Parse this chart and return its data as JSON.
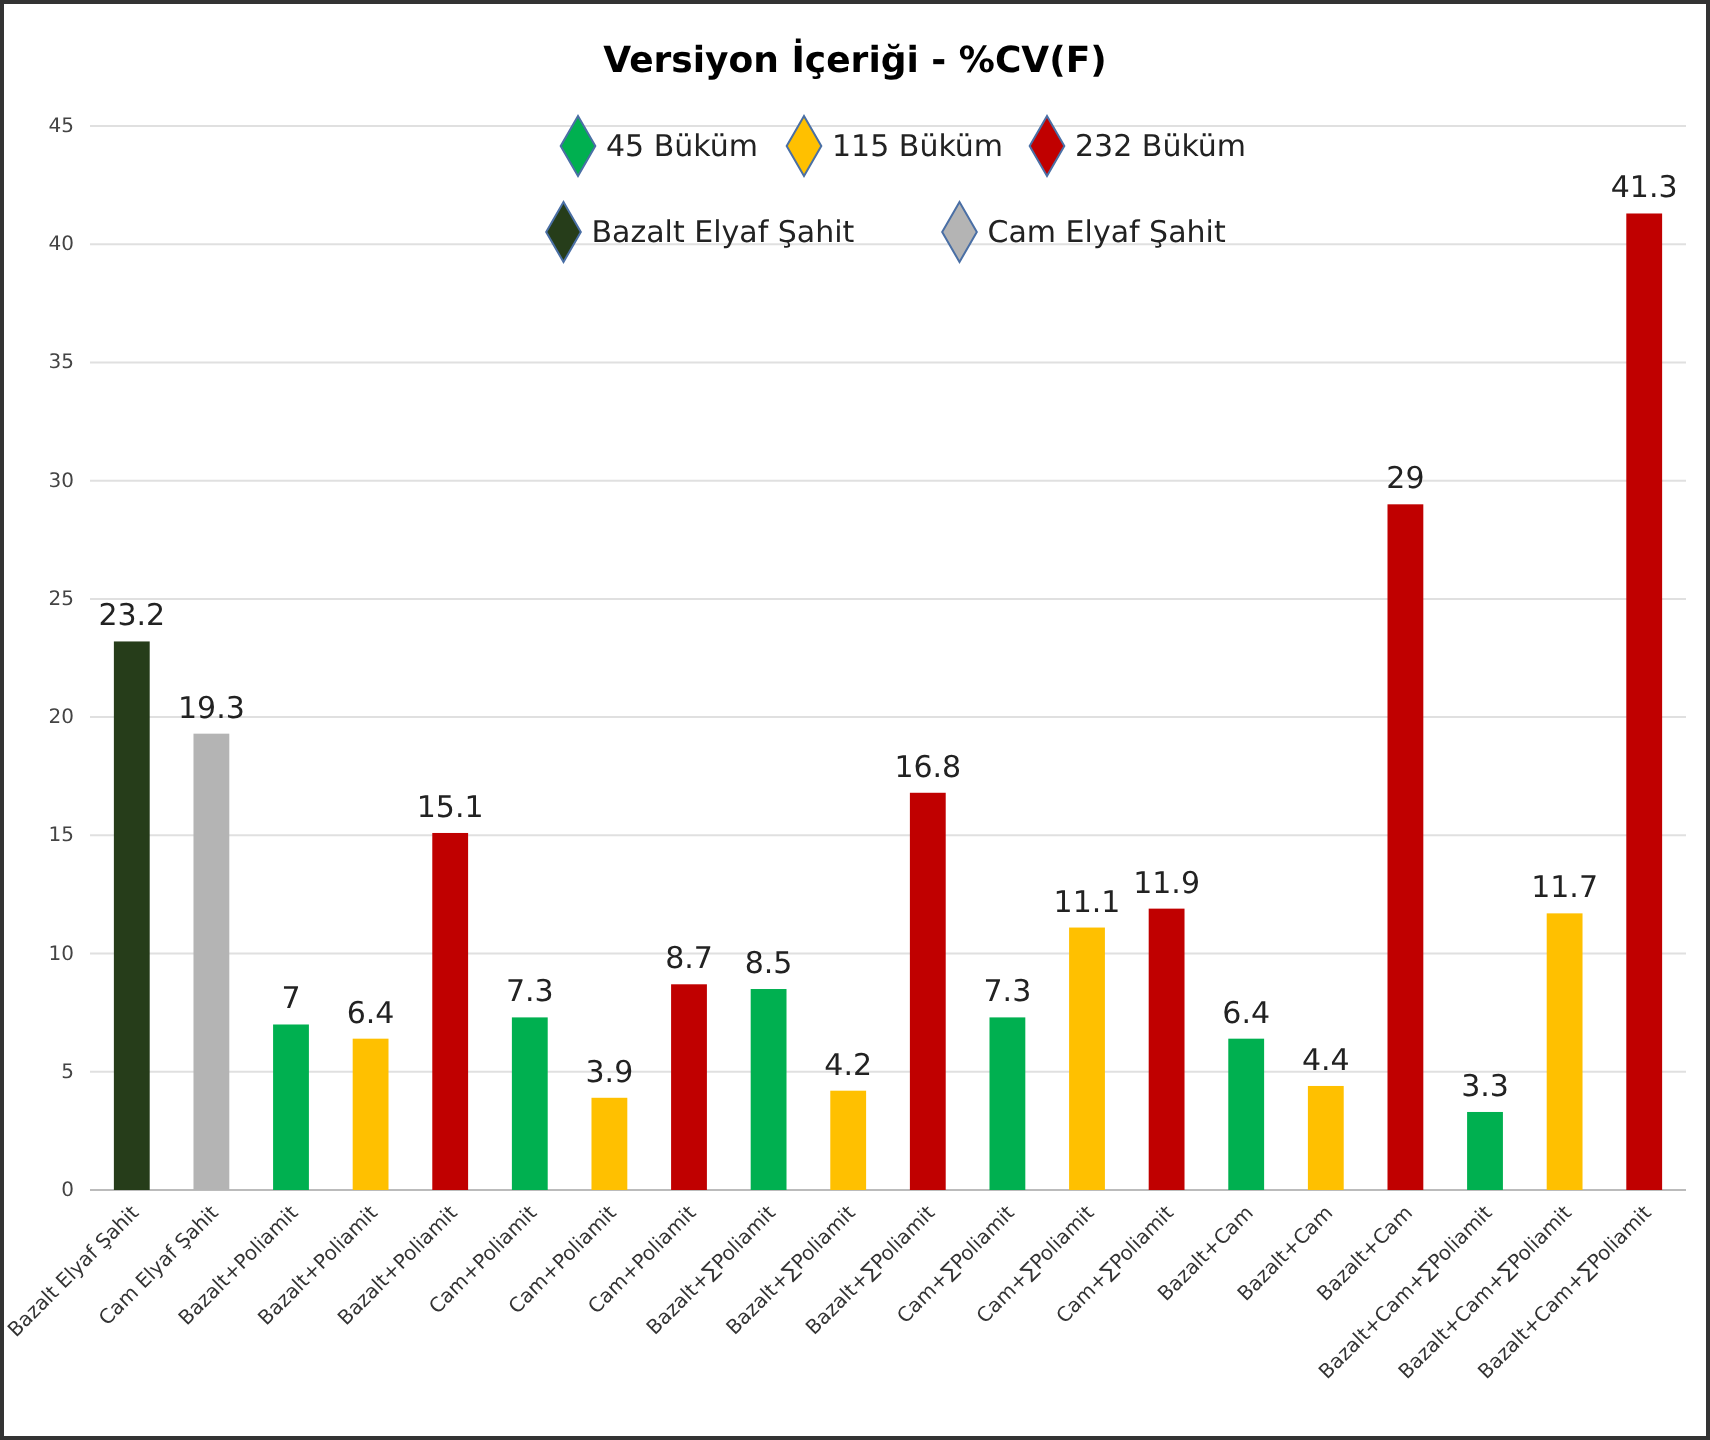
{
  "chart_data": {
    "type": "bar",
    "title": "Versiyon İçeriği - %CV(F)",
    "categories": [
      "Bazalt Elyaf Şahit",
      "Cam Elyaf Şahit",
      "Bazalt+Poliamit",
      "Bazalt+Poliamit",
      "Bazalt+Poliamit",
      "Cam+Poliamit",
      "Cam+Poliamit",
      "Cam+Poliamit",
      "Bazalt+∑Poliamit",
      "Bazalt+∑Poliamit",
      "Bazalt+∑Poliamit",
      "Cam+∑Poliamit",
      "Cam+∑Poliamit",
      "Cam+∑Poliamit",
      "Bazalt+Cam",
      "Bazalt+Cam",
      "Bazalt+Cam",
      "Bazalt+Cam+∑Poliamit",
      "Bazalt+Cam+∑Poliamit",
      "Bazalt+Cam+∑Poliamit"
    ],
    "series": [
      {
        "name": "45 Büküm",
        "color": "#00b050",
        "values": [
          null,
          null,
          7,
          null,
          null,
          7.3,
          null,
          null,
          8.5,
          null,
          null,
          7.3,
          null,
          null,
          6.4,
          null,
          null,
          3.3,
          null,
          null
        ]
      },
      {
        "name": "115 Büküm",
        "color": "#ffc000",
        "values": [
          null,
          null,
          null,
          6.4,
          null,
          null,
          3.9,
          null,
          null,
          4.2,
          null,
          null,
          11.1,
          null,
          null,
          4.4,
          null,
          null,
          11.7,
          null
        ]
      },
      {
        "name": "232 Büküm",
        "color": "#c00000",
        "values": [
          null,
          null,
          null,
          null,
          15.1,
          null,
          null,
          8.7,
          null,
          null,
          16.8,
          null,
          null,
          11.9,
          null,
          null,
          29,
          null,
          null,
          41.3
        ]
      },
      {
        "name": "Bazalt Elyaf Şahit",
        "color": "#263d1a",
        "values": [
          23.2,
          null,
          null,
          null,
          null,
          null,
          null,
          null,
          null,
          null,
          null,
          null,
          null,
          null,
          null,
          null,
          null,
          null,
          null,
          null
        ]
      },
      {
        "name": "Cam Elyaf Şahit",
        "color": "#b4b4b4",
        "values": [
          null,
          19.3,
          null,
          null,
          null,
          null,
          null,
          null,
          null,
          null,
          null,
          null,
          null,
          null,
          null,
          null,
          null,
          null,
          null,
          null
        ]
      }
    ],
    "ylim": [
      0,
      45
    ],
    "yticks": [
      0,
      5,
      10,
      15,
      20,
      25,
      30,
      35,
      40,
      45
    ],
    "grid": "y",
    "legend": "top",
    "marker": "diamond",
    "data_labels": true
  }
}
